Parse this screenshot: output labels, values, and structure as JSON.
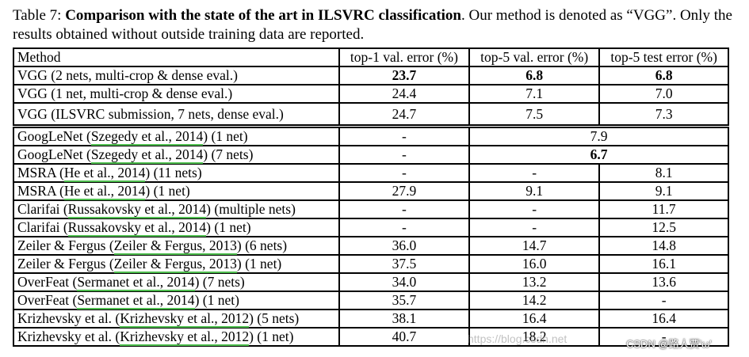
{
  "caption": {
    "label": "Table 7: ",
    "title": "Comparison with the state of the art in ILSVRC classification",
    "rest": ". Our method is denoted as “VGG”. Only the results obtained without outside training data are reported."
  },
  "table": {
    "headers": [
      "Method",
      "top-1 val. error (%)",
      "top-5 val. error (%)",
      "top-5 test error (%)"
    ],
    "vgg_rows": [
      {
        "method": "VGG (2 nets, multi-crop & dense eval.)",
        "top1": "23.7",
        "top5val": "6.8",
        "top5test": "6.8"
      },
      {
        "method": "VGG (1 net, multi-crop & dense eval.)",
        "top1": "24.4",
        "top5val": "7.1",
        "top5test": "7.0"
      },
      {
        "method": "VGG (ILSVRC submission, 7 nets, dense eval.)",
        "top1": "24.7",
        "top5val": "7.5",
        "top5test": "7.3"
      }
    ],
    "other_rows": [
      {
        "pre": "GoogLeNet (",
        "cite": "Szegedy et al., 2014",
        "post": ") (1 net)",
        "top1": "-",
        "merged": "7.9"
      },
      {
        "pre": "GoogLeNet (",
        "cite": "Szegedy et al., 2014",
        "post": ") (7 nets)",
        "top1": "-",
        "merged": "6.7"
      },
      {
        "pre": "MSRA (",
        "cite": "He et al., 2014",
        "post": ") (11 nets)",
        "top1": "-",
        "top5val": "-",
        "top5test": "8.1"
      },
      {
        "pre": "MSRA (",
        "cite": "He et al., 2014",
        "post": ") (1 net)",
        "top1": "27.9",
        "top5val": "9.1",
        "top5test": "9.1"
      },
      {
        "pre": "Clarifai (",
        "cite": "Russakovsky et al., 2014",
        "post": ") (multiple nets)",
        "top1": "-",
        "top5val": "-",
        "top5test": "11.7"
      },
      {
        "pre": "Clarifai (",
        "cite": "Russakovsky et al., 2014",
        "post": ") (1 net)",
        "top1": "-",
        "top5val": "-",
        "top5test": "12.5"
      },
      {
        "pre": "Zeiler & Fergus (",
        "cite": "Zeiler & Fergus, 2013",
        "post": ") (6 nets)",
        "top1": "36.0",
        "top5val": "14.7",
        "top5test": "14.8"
      },
      {
        "pre": "Zeiler & Fergus (",
        "cite": "Zeiler & Fergus, 2013",
        "post": ") (1 net)",
        "top1": "37.5",
        "top5val": "16.0",
        "top5test": "16.1"
      },
      {
        "pre": "OverFeat (",
        "cite": "Sermanet et al., 2014",
        "post": ") (7 nets)",
        "top1": "34.0",
        "top5val": "13.2",
        "top5test": "13.6"
      },
      {
        "pre": "OverFeat (",
        "cite": "Sermanet et al., 2014",
        "post": ") (1 net)",
        "top1": "35.7",
        "top5val": "14.2",
        "top5test": "-"
      },
      {
        "pre": "Krizhevsky et al. (",
        "cite": "Krizhevsky et al., 2012",
        "post": ") (5 nets)",
        "top1": "38.1",
        "top5val": "16.4",
        "top5test": "16.4"
      },
      {
        "pre": "Krizhevsky et al. (",
        "cite": "Krizhevsky et al., 2012",
        "post": ") (1 net)",
        "top1": "40.7",
        "top5val": "18.2",
        "top5test": "-"
      }
    ]
  },
  "watermark": {
    "url_text": "https://blog.csdn.net",
    "brand": "CSDN @路人贾'ω'"
  }
}
